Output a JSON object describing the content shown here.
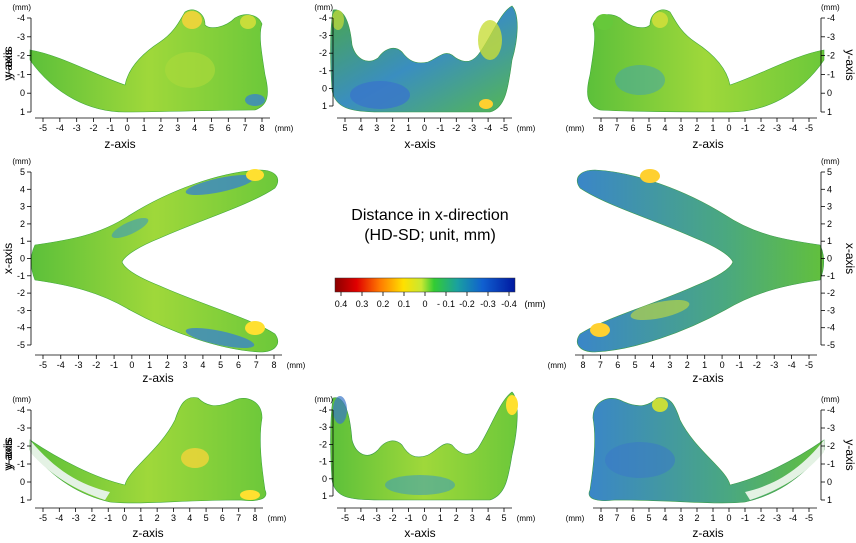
{
  "center_title": {
    "line1": "Distance in x-direction",
    "line2": "(HD-SD;  unit, mm)"
  },
  "colorbar": {
    "stops": [
      "#8b0000",
      "#e00000",
      "#ff7a00",
      "#ffe000",
      "#c8e832",
      "#33cc33",
      "#1aa0a0",
      "#1060d0",
      "#0018a0"
    ],
    "tick_labels": [
      "0.4",
      "0.3",
      "0.2",
      "0.1",
      "0",
      "- 0.1",
      "-0.2",
      "-0.3",
      "-0.4"
    ],
    "unit": "(mm)"
  },
  "colors": {
    "surface_green": "#66c83a",
    "surface_yellow": "#e6e23a",
    "surface_blue": "#3a86c8",
    "surface_light": "#e4f2e4"
  },
  "panels": [
    {
      "id": "top-left",
      "xlabel": "z-axis",
      "ylabel": "y-axis",
      "xticks": [
        "-5",
        "-4",
        "-3",
        "-2",
        "-1",
        "0",
        "1",
        "2",
        "3",
        "4",
        "5",
        "6",
        "7",
        "8"
      ],
      "yticks": [
        "-4",
        "-3",
        "-2",
        "-1",
        "0",
        "1"
      ],
      "unit": "(mm)"
    },
    {
      "id": "top-center",
      "xlabel": "x-axis",
      "ylabel": "y-axis",
      "xticks": [
        "5",
        "4",
        "3",
        "2",
        "1",
        "0",
        "-1",
        "-2",
        "-3",
        "-4",
        "-5"
      ],
      "yticks": [
        "-4",
        "-3",
        "-2",
        "-1",
        "0",
        "1"
      ],
      "unit": "(mm)"
    },
    {
      "id": "top-right",
      "xlabel": "z-axis",
      "ylabel": "y-axis",
      "xticks": [
        "8",
        "7",
        "6",
        "5",
        "4",
        "3",
        "2",
        "1",
        "0",
        "-1",
        "-2",
        "-3",
        "-4",
        "-5"
      ],
      "yticks": [
        "-4",
        "-3",
        "-2",
        "-1",
        "0",
        "1"
      ],
      "unit": "(mm)"
    },
    {
      "id": "middle-left",
      "xlabel": "z-axis",
      "ylabel": "x-axis",
      "xticks": [
        "-5",
        "-4",
        "-3",
        "-2",
        "-1",
        "0",
        "1",
        "2",
        "3",
        "4",
        "5",
        "6",
        "7",
        "8"
      ],
      "yticks": [
        "5",
        "4",
        "3",
        "2",
        "1",
        "0",
        "-1",
        "-2",
        "-3",
        "-4",
        "-5"
      ],
      "unit": "(mm)"
    },
    {
      "id": "middle-right",
      "xlabel": "z-axis",
      "ylabel": "x-axis",
      "xticks": [
        "8",
        "7",
        "6",
        "5",
        "4",
        "3",
        "2",
        "1",
        "0",
        "-1",
        "-2",
        "-3",
        "-4",
        "-5"
      ],
      "yticks": [
        "5",
        "4",
        "3",
        "2",
        "1",
        "0",
        "-1",
        "-2",
        "-3",
        "-4",
        "-5"
      ],
      "unit": "(mm)"
    },
    {
      "id": "bottom-left",
      "xlabel": "z-axis",
      "ylabel": "y-axis",
      "xticks": [
        "-5",
        "-4",
        "-3",
        "-2",
        "-1",
        "0",
        "1",
        "2",
        "3",
        "4",
        "5",
        "6",
        "7",
        "8"
      ],
      "yticks": [
        "-4",
        "-3",
        "-2",
        "-1",
        "0",
        "1"
      ],
      "unit": "(mm)"
    },
    {
      "id": "bottom-center",
      "xlabel": "x-axis",
      "ylabel": "y-axis",
      "xticks": [
        "-5",
        "-4",
        "-3",
        "-2",
        "-1",
        "0",
        "1",
        "2",
        "3",
        "4",
        "5"
      ],
      "yticks": [
        "-4",
        "-3",
        "-2",
        "-1",
        "0",
        "1"
      ],
      "unit": "(mm)"
    },
    {
      "id": "bottom-right",
      "xlabel": "z-axis",
      "ylabel": "y-axis",
      "xticks": [
        "8",
        "7",
        "6",
        "5",
        "4",
        "3",
        "2",
        "1",
        "0",
        "-1",
        "-2",
        "-3",
        "-4",
        "-5"
      ],
      "yticks": [
        "-4",
        "-3",
        "-2",
        "-1",
        "0",
        "1"
      ],
      "unit": "(mm)"
    }
  ]
}
